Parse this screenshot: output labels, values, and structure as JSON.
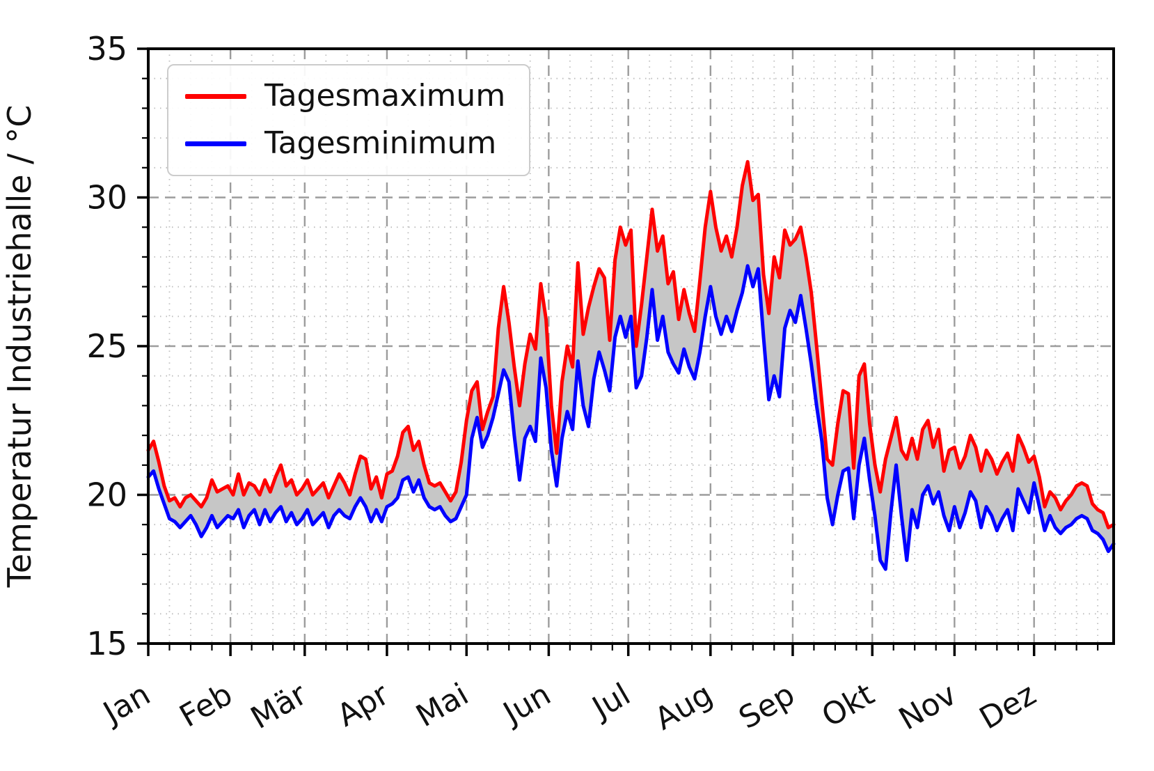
{
  "chart_data": {
    "type": "line",
    "title": "",
    "xlabel": "",
    "ylabel": "Temperatur Industriehalle / °C",
    "ylim": [
      15,
      35
    ],
    "y_major_ticks": [
      35,
      30,
      25,
      20,
      15
    ],
    "y_minor_step": 1,
    "x_tick_labels": [
      "Jan",
      "Feb",
      "Mär",
      "Apr",
      "Mai",
      "Jun",
      "Jul",
      "Aug",
      "Sep",
      "Okt",
      "Nov",
      "Dez"
    ],
    "month_start_days": [
      1,
      32,
      60,
      91,
      121,
      152,
      182,
      213,
      244,
      274,
      305,
      335
    ],
    "x_minor_monthday_offsets": [
      8,
      16,
      24
    ],
    "x_range_days": [
      1,
      365
    ],
    "sample_start_day": 1,
    "sample_step_days": 2,
    "grid": {
      "major": {
        "style": "dashed",
        "color": "#9c9c9c"
      },
      "minor": {
        "style": "dotted",
        "color": "#bcbcbc"
      }
    },
    "fill_between_color": "#c6c6c6",
    "legend_position": "upper-left",
    "series": [
      {
        "name": "Tagesmaximum",
        "color": "#ff0000",
        "values": [
          21.5,
          21.8,
          21.1,
          20.3,
          19.8,
          19.9,
          19.6,
          19.9,
          20.0,
          19.8,
          19.6,
          19.9,
          20.5,
          20.1,
          20.2,
          20.3,
          20.0,
          20.7,
          20.0,
          20.4,
          20.3,
          20.0,
          20.5,
          20.1,
          20.6,
          21.0,
          20.3,
          20.5,
          20.0,
          20.2,
          20.5,
          20.0,
          20.2,
          20.4,
          19.9,
          20.3,
          20.7,
          20.4,
          20.0,
          20.7,
          21.3,
          21.2,
          20.2,
          20.6,
          19.9,
          20.7,
          20.8,
          21.3,
          22.1,
          22.3,
          21.5,
          21.8,
          21.0,
          20.4,
          20.3,
          20.4,
          20.1,
          19.8,
          20.1,
          21.1,
          22.5,
          23.5,
          23.8,
          22.2,
          22.8,
          23.3,
          25.6,
          27.0,
          25.8,
          24.3,
          23.0,
          24.4,
          25.4,
          24.9,
          27.1,
          25.9,
          23.0,
          21.4,
          23.8,
          25.0,
          24.3,
          27.8,
          25.4,
          26.3,
          27.0,
          27.6,
          27.3,
          25.2,
          27.9,
          29.0,
          28.4,
          28.9,
          25.0,
          26.4,
          28.0,
          29.6,
          28.2,
          28.7,
          27.1,
          27.5,
          25.9,
          26.9,
          26.1,
          25.5,
          27.2,
          29.0,
          30.2,
          29.0,
          28.2,
          28.7,
          28.0,
          29.0,
          30.4,
          31.2,
          29.9,
          30.1,
          27.4,
          26.1,
          28.0,
          27.3,
          28.9,
          28.4,
          28.6,
          29.0,
          28.0,
          26.8,
          25.0,
          23.1,
          21.2,
          21.0,
          22.4,
          23.5,
          23.4,
          20.9,
          24.0,
          24.4,
          22.4,
          21.0,
          20.1,
          21.2,
          21.9,
          22.6,
          21.5,
          21.2,
          21.9,
          21.2,
          22.2,
          22.5,
          21.6,
          22.2,
          20.8,
          21.5,
          21.6,
          20.9,
          21.3,
          22.0,
          21.6,
          20.8,
          21.5,
          21.2,
          20.7,
          21.1,
          21.4,
          20.8,
          22.0,
          21.6,
          21.1,
          21.3,
          20.6,
          19.6,
          20.1,
          19.9,
          19.5,
          19.8,
          20.0,
          20.3,
          20.4,
          20.3,
          19.7,
          19.5,
          19.4,
          18.9,
          19.0
        ]
      },
      {
        "name": "Tagesminimum",
        "color": "#0000ff",
        "values": [
          20.6,
          20.8,
          20.2,
          19.7,
          19.2,
          19.1,
          18.9,
          19.1,
          19.3,
          19.0,
          18.6,
          18.9,
          19.3,
          18.9,
          19.1,
          19.3,
          19.2,
          19.5,
          18.9,
          19.3,
          19.5,
          19.0,
          19.5,
          19.1,
          19.4,
          19.6,
          19.1,
          19.4,
          19.0,
          19.2,
          19.5,
          19.0,
          19.2,
          19.4,
          18.9,
          19.3,
          19.5,
          19.3,
          19.2,
          19.6,
          19.9,
          19.6,
          19.1,
          19.5,
          19.1,
          19.6,
          19.7,
          19.9,
          20.5,
          20.6,
          20.1,
          20.5,
          19.9,
          19.6,
          19.5,
          19.6,
          19.3,
          19.1,
          19.2,
          19.6,
          20.0,
          21.9,
          22.6,
          21.6,
          22.0,
          22.6,
          23.4,
          24.2,
          23.8,
          22.0,
          20.5,
          21.9,
          22.3,
          21.8,
          24.6,
          23.6,
          21.5,
          20.3,
          21.9,
          22.8,
          22.2,
          24.5,
          23.0,
          22.3,
          23.9,
          24.8,
          24.2,
          23.5,
          25.3,
          26.0,
          25.3,
          26.0,
          23.6,
          24.0,
          25.3,
          26.9,
          25.2,
          26.0,
          24.8,
          24.4,
          24.1,
          24.9,
          24.3,
          23.9,
          24.8,
          26.0,
          27.0,
          26.0,
          25.4,
          26.0,
          25.5,
          26.2,
          26.8,
          27.7,
          27.0,
          27.6,
          25.3,
          23.2,
          24.0,
          23.3,
          25.6,
          26.2,
          25.8,
          26.7,
          25.6,
          24.4,
          23.0,
          21.8,
          19.9,
          19.0,
          20.0,
          20.8,
          20.9,
          19.2,
          21.0,
          21.9,
          20.5,
          19.3,
          17.8,
          17.5,
          19.4,
          21.0,
          19.3,
          17.8,
          19.5,
          18.9,
          20.0,
          20.3,
          19.7,
          20.1,
          19.3,
          18.8,
          19.6,
          18.9,
          19.4,
          20.1,
          19.8,
          18.9,
          19.6,
          19.3,
          18.8,
          19.2,
          19.5,
          18.8,
          20.2,
          19.8,
          19.4,
          20.4,
          19.6,
          18.8,
          19.3,
          18.9,
          18.7,
          18.9,
          19.0,
          19.2,
          19.3,
          19.2,
          18.8,
          18.7,
          18.5,
          18.1,
          18.35
        ]
      }
    ]
  }
}
